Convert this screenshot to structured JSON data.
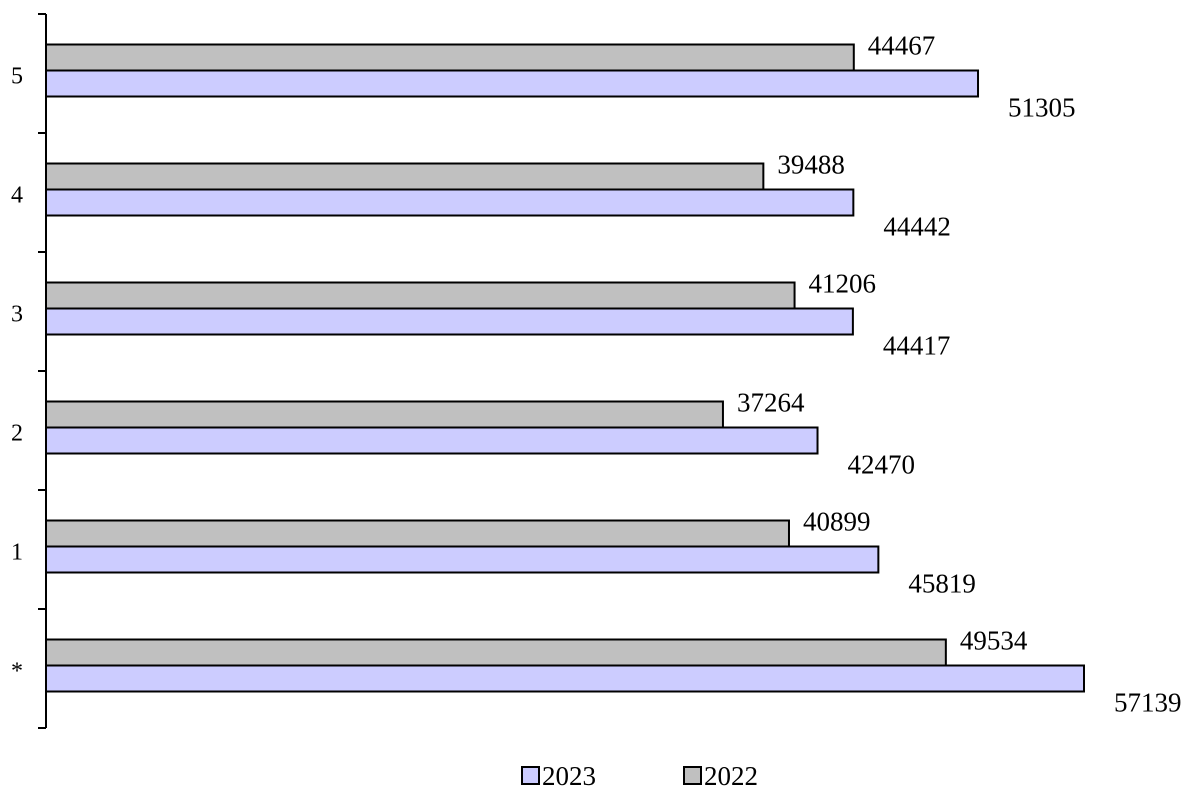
{
  "chart_data": {
    "type": "bar",
    "orientation": "horizontal",
    "categories": [
      "*",
      "1",
      "2",
      "3",
      "4",
      "5"
    ],
    "series": [
      {
        "name": "2023",
        "color": "#ccccff",
        "values": [
          57139,
          45819,
          42470,
          44417,
          44442,
          51305
        ],
        "labels": [
          "57139",
          "45819",
          "42470",
          "44417",
          "44442",
          "51305"
        ]
      },
      {
        "name": "2022",
        "color": "#c0c0c0",
        "values": [
          49534,
          40899,
          37264,
          41206,
          39488,
          44467
        ],
        "labels": [
          "49534",
          "40899",
          "37264",
          "41206",
          "39488",
          "44467"
        ]
      }
    ],
    "xlim": [
      0,
      58000
    ],
    "grid": false,
    "legend": "bottom"
  }
}
